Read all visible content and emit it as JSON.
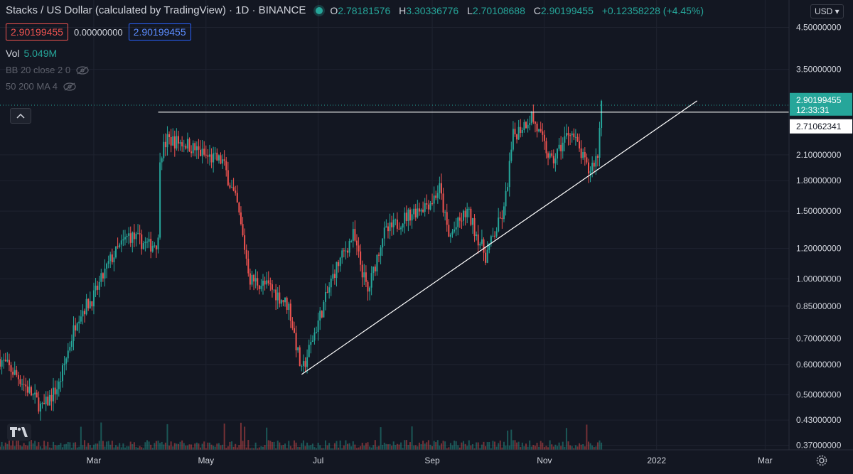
{
  "header": {
    "title": "Stacks / US Dollar (calculated by TradingView) · 1D · BINANCE",
    "ohlc": {
      "o_label": "O",
      "o": "2.78181576",
      "h_label": "H",
      "h": "3.30336776",
      "l_label": "L",
      "l": "2.70108688",
      "c_label": "C",
      "c": "2.90199455",
      "change": "+0.12358228 (+4.45%)"
    },
    "bid": "2.90199455",
    "spread": "0.00000000",
    "ask": "2.90199455",
    "vol_label": "Vol",
    "vol_value": "5.049M",
    "indicator1": "BB 20 close 2 0",
    "indicator2": "50 200 MA 4",
    "currency": "USD ▾"
  },
  "colors": {
    "bg": "#131722",
    "up": "#26a69a",
    "down": "#ef5350",
    "grid": "#1f2330",
    "line": "#ffffff",
    "text": "#d1d4dc"
  },
  "icons": [
    "eye-off-icon",
    "chevron-up-icon",
    "tradingview-logo-icon",
    "gear-icon"
  ],
  "chart_data": {
    "type": "candlestick",
    "scale": "log",
    "grid": true,
    "x_ticks": [
      "Mar",
      "May",
      "Jul",
      "Sep",
      "Nov",
      "2022",
      "Mar"
    ],
    "x_tick_dates": [
      "2021-03-01",
      "2021-05-01",
      "2021-07-01",
      "2021-09-01",
      "2021-11-01",
      "2022-01-01",
      "2022-03-01"
    ],
    "x_range": [
      "2021-01-09",
      "2022-03-14"
    ],
    "y_ticks": [
      0.37,
      0.43,
      0.5,
      0.6,
      0.7,
      0.85,
      1.0,
      1.2,
      1.5,
      1.8,
      2.1,
      3.5,
      4.5
    ],
    "y_tick_labels": [
      "0.37000000",
      "0.43000000",
      "0.50000000",
      "0.60000000",
      "0.70000000",
      "0.85000000",
      "1.00000000",
      "1.20000000",
      "1.50000000",
      "1.80000000",
      "2.10000000",
      "3.50000000",
      "4.50000000"
    ],
    "y_range": [
      0.36,
      5.3
    ],
    "price_label": {
      "value": "2.90199455",
      "countdown": "12:33:31"
    },
    "resistance_label": "2.71062341",
    "resistance": {
      "from": "2021-04-05",
      "to": "2022-03-14",
      "price": 2.71062341
    },
    "support": {
      "from": "2021-06-22",
      "from_price": 0.565,
      "to": "2022-01-23",
      "to_price": 2.9
    },
    "closes": [
      {
        "d": "2021-01-09",
        "c": 0.62
      },
      {
        "d": "2021-01-20",
        "c": 0.55
      },
      {
        "d": "2021-02-01",
        "c": 0.46
      },
      {
        "d": "2021-02-10",
        "c": 0.53
      },
      {
        "d": "2021-02-20",
        "c": 0.8
      },
      {
        "d": "2021-03-01",
        "c": 0.9
      },
      {
        "d": "2021-03-10",
        "c": 1.12
      },
      {
        "d": "2021-03-20",
        "c": 1.3
      },
      {
        "d": "2021-03-31",
        "c": 1.22
      },
      {
        "d": "2021-04-05",
        "c": 1.25
      },
      {
        "d": "2021-04-06",
        "c": 2.1
      },
      {
        "d": "2021-04-10",
        "c": 2.3
      },
      {
        "d": "2021-04-20",
        "c": 2.25
      },
      {
        "d": "2021-05-01",
        "c": 2.08
      },
      {
        "d": "2021-05-10",
        "c": 2.02
      },
      {
        "d": "2021-05-18",
        "c": 1.55
      },
      {
        "d": "2021-05-25",
        "c": 1.0
      },
      {
        "d": "2021-06-05",
        "c": 0.95
      },
      {
        "d": "2021-06-15",
        "c": 0.85
      },
      {
        "d": "2021-06-22",
        "c": 0.57
      },
      {
        "d": "2021-06-30",
        "c": 0.75
      },
      {
        "d": "2021-07-10",
        "c": 1.05
      },
      {
        "d": "2021-07-20",
        "c": 1.3
      },
      {
        "d": "2021-07-28",
        "c": 0.92
      },
      {
        "d": "2021-08-05",
        "c": 1.3
      },
      {
        "d": "2021-08-20",
        "c": 1.48
      },
      {
        "d": "2021-09-01",
        "c": 1.6
      },
      {
        "d": "2021-09-05",
        "c": 1.72
      },
      {
        "d": "2021-09-10",
        "c": 1.28
      },
      {
        "d": "2021-09-20",
        "c": 1.5
      },
      {
        "d": "2021-09-30",
        "c": 1.15
      },
      {
        "d": "2021-10-10",
        "c": 1.5
      },
      {
        "d": "2021-10-15",
        "c": 2.35
      },
      {
        "d": "2021-10-25",
        "c": 2.65
      },
      {
        "d": "2021-11-05",
        "c": 2.0
      },
      {
        "d": "2021-11-15",
        "c": 2.45
      },
      {
        "d": "2021-11-25",
        "c": 1.9
      },
      {
        "d": "2021-11-30",
        "c": 2.1
      },
      {
        "d": "2021-12-02",
        "c": 2.9
      }
    ]
  }
}
